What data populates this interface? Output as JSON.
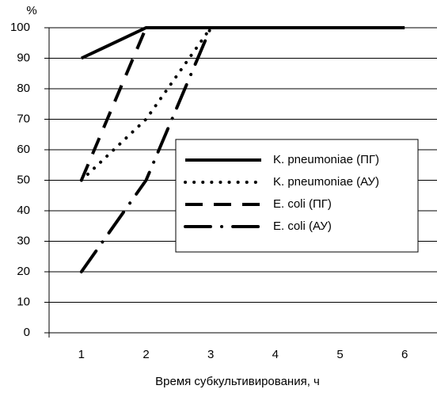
{
  "chart_data": {
    "type": "line",
    "y_label": "%",
    "x_label": "Время субкультивирования, ч",
    "categories": [
      "1",
      "2",
      "3",
      "4",
      "5",
      "6"
    ],
    "ylim": [
      0,
      100
    ],
    "yticks": [
      0,
      10,
      20,
      30,
      40,
      50,
      60,
      70,
      80,
      90,
      100
    ],
    "grid": true,
    "series": [
      {
        "name": "K. pneumoniae (ПГ)",
        "color": "#000000",
        "dash": "solid",
        "values": [
          90,
          100,
          100,
          100,
          100,
          100
        ]
      },
      {
        "name": "K. pneumoniae (АУ)",
        "color": "#000000",
        "dash": "dotted",
        "values": [
          50,
          70,
          100,
          100,
          100,
          100
        ]
      },
      {
        "name": "E. coli (ПГ)",
        "color": "#000000",
        "dash": "dashed",
        "values": [
          50,
          100,
          100,
          100,
          100,
          100
        ]
      },
      {
        "name": "E. coli (АУ)",
        "color": "#000000",
        "dash": "dashdot",
        "values": [
          20,
          50,
          100,
          100,
          100,
          100
        ]
      }
    ]
  }
}
